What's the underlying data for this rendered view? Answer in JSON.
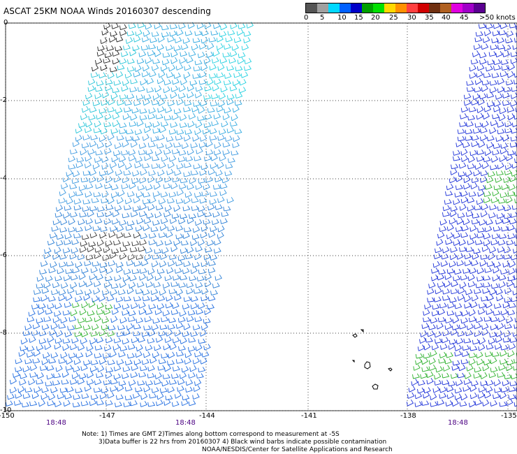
{
  "title": "ASCAT 25KM NOAA Winds 20160307 descending",
  "colorbar": {
    "labels": [
      "0",
      "5",
      "10",
      "15",
      "20",
      "25",
      "30",
      "35",
      "40",
      "45",
      ">50 knots"
    ],
    "colors": [
      "#555555",
      "#a0a0a0",
      "#00d8ff",
      "#0060ff",
      "#0000c8",
      "#00a000",
      "#00e000",
      "#ffd800",
      "#ff9000",
      "#ff4040",
      "#d00000",
      "#703010",
      "#b06020",
      "#e000e0",
      "#a000c8",
      "#5a0090"
    ]
  },
  "map": {
    "lat_labels": [
      "0",
      "-2",
      "-4",
      "-6",
      "-8",
      "-10"
    ],
    "lon_labels": [
      "-150",
      "-147",
      "-144",
      "-141",
      "-138",
      "-135"
    ],
    "time_labels": [
      "18:48",
      "18:48",
      "18:48"
    ]
  },
  "notes": {
    "line1": "Note: 1) Times are GMT 2)Times along bottom correspond to measurement at -5S",
    "line2": "3)Data buffer is 22 hrs from 20160307 4) Black wind barbs indicate possible contamination",
    "line3": "NOAA/NESDIS/Center for Satellite Applications and Research"
  }
}
